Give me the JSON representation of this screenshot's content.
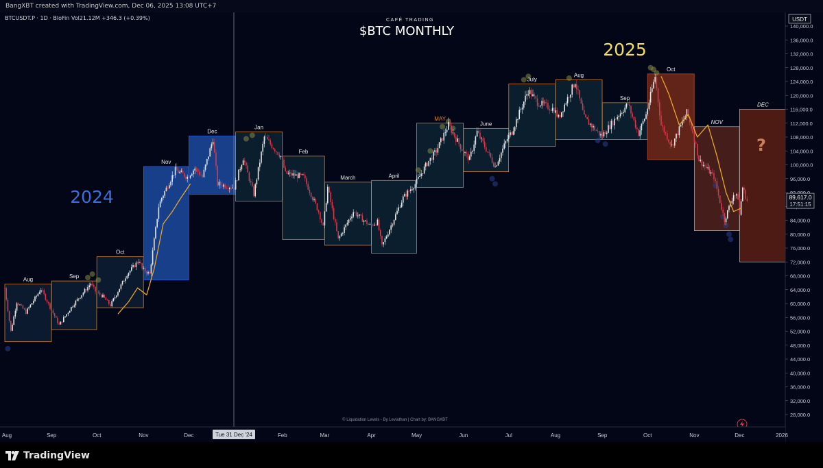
{
  "header": {
    "credit": "BangXBT created with TradingView.com, Dec 06, 2025 13:08 UTC+7",
    "symbol_info": "BTCUSDT.P · 1D · BloFin  Vol21.12M  +346.3 (+0.39%)"
  },
  "titles": {
    "brand": "CAFÉ TRADING",
    "main": "$BTC MONTHLY",
    "year_2024": "2024",
    "year_2025": "2025",
    "question": "?",
    "footer_credit": "© Liquidation Levels - By Leviathan | Chart by: BANGXBT"
  },
  "price_axis": {
    "currency_label": "USDT",
    "ticks": [
      "140,000.0",
      "136,000.0",
      "132,000.0",
      "128,000.0",
      "124,000.0",
      "120,000.0",
      "116,000.0",
      "112,000.0",
      "108,000.0",
      "104,000.0",
      "100,000.0",
      "96,000.0",
      "92,000.0",
      "88,000.0",
      "84,000.0",
      "80,000.0",
      "76,000.0",
      "72,000.0",
      "68,000.0",
      "64,000.0",
      "60,000.0",
      "56,000.0",
      "52,000.0",
      "48,000.0",
      "44,000.0",
      "40,000.0",
      "36,000.0",
      "32,000.0",
      "28,000.0"
    ],
    "current_price": "89,617.0",
    "countdown": "17:51:15"
  },
  "time_axis": {
    "labels": [
      "Aug",
      "Sep",
      "Oct",
      "Nov",
      "Dec",
      "Feb",
      "Mar",
      "Apr",
      "May",
      "Jun",
      "Jul",
      "Aug",
      "Sep",
      "Oct",
      "Nov",
      "Dec",
      "2026"
    ],
    "crosshair_label": "Tue 31 Dec '24"
  },
  "colors": {
    "background": "#020617",
    "bull_candle": "#e8e8e8",
    "bear_candle": "#d23a4e",
    "box_2024": "#1e4ea6",
    "box_2025_dark": "#0d2333",
    "box_orange_border": "#d4812a",
    "box_red_fill": "#7a2a1a",
    "year_2024_text": "#3d6fd8",
    "year_2025_text": "#f3e05a",
    "projection_line": "#e8a72a",
    "bubbles_green": "#8a8a46",
    "bubbles_blue": "#2a3f8c"
  },
  "chart_data": {
    "type": "candlestick",
    "title": "$BTC MONTHLY",
    "subtitle": "CAFÉ TRADING",
    "timeframe": "1D",
    "ylim": [
      26000,
      142000
    ],
    "xlabel": "",
    "ylabel": "",
    "current_price": 89617.0,
    "monthly_ranges": [
      {
        "month": "Aug",
        "label": "Aug",
        "start": "2024-08-01",
        "end": "2024-08-31",
        "high": 65600,
        "low": 49000,
        "style": "blue"
      },
      {
        "month": "Sep",
        "label": "Sep",
        "start": "2024-09-01",
        "end": "2024-09-30",
        "high": 66500,
        "low": 52500,
        "style": "blue"
      },
      {
        "month": "Oct",
        "label": "Oct",
        "start": "2024-10-01",
        "end": "2024-10-31",
        "high": 73500,
        "low": 58800,
        "style": "blue"
      },
      {
        "month": "Nov",
        "label": "Nov",
        "start": "2024-11-01",
        "end": "2024-11-30",
        "high": 99500,
        "low": 66800,
        "style": "blue_fill"
      },
      {
        "month": "Dec",
        "label": "Dec",
        "start": "2024-12-01",
        "end": "2024-12-31",
        "high": 108300,
        "low": 91500,
        "style": "blue_fill"
      },
      {
        "month": "Jan",
        "label": "Jan",
        "start": "2025-01-01",
        "end": "2025-01-31",
        "high": 109500,
        "low": 89500,
        "style": "orange"
      },
      {
        "month": "Feb",
        "label": "Feb",
        "start": "2025-02-01",
        "end": "2025-02-28",
        "high": 102500,
        "low": 78500,
        "style": "orange"
      },
      {
        "month": "Mar",
        "label": "March",
        "start": "2025-03-01",
        "end": "2025-03-31",
        "high": 95000,
        "low": 76800,
        "style": "orange"
      },
      {
        "month": "Apr",
        "label": "April",
        "start": "2025-04-01",
        "end": "2025-04-30",
        "high": 95500,
        "low": 74500,
        "style": "orange"
      },
      {
        "month": "May",
        "label": "MAY",
        "start": "2025-05-01",
        "end": "2025-05-31",
        "high": 112000,
        "low": 93500,
        "style": "orange"
      },
      {
        "month": "Jun",
        "label": "June",
        "start": "2025-06-01",
        "end": "2025-06-30",
        "high": 110500,
        "low": 98000,
        "style": "orange"
      },
      {
        "month": "Jul",
        "label": "July",
        "start": "2025-07-01",
        "end": "2025-07-31",
        "high": 123300,
        "low": 105300,
        "style": "orange"
      },
      {
        "month": "Aug",
        "label": "Aug",
        "start": "2025-08-01",
        "end": "2025-08-31",
        "high": 124500,
        "low": 107300,
        "style": "orange"
      },
      {
        "month": "Sep",
        "label": "Sep",
        "start": "2025-09-01",
        "end": "2025-09-30",
        "high": 117900,
        "low": 107300,
        "style": "orange"
      },
      {
        "month": "Oct",
        "label": "Oct",
        "start": "2025-10-01",
        "end": "2025-10-31",
        "high": 126200,
        "low": 101500,
        "style": "red"
      },
      {
        "month": "Nov",
        "label": "NOV",
        "start": "2025-11-01",
        "end": "2025-11-30",
        "high": 111000,
        "low": 81000,
        "style": "red_light"
      },
      {
        "month": "Dec",
        "label": "DEC",
        "start": "2025-12-01",
        "end": "2025-12-31",
        "high": 116000,
        "low": 72000,
        "style": "red_projection"
      }
    ],
    "price_path": [
      [
        "2024-08-01",
        64500
      ],
      [
        "2024-08-05",
        52000
      ],
      [
        "2024-08-09",
        60500
      ],
      [
        "2024-08-15",
        57500
      ],
      [
        "2024-08-25",
        64200
      ],
      [
        "2024-08-31",
        59000
      ],
      [
        "2024-09-06",
        53800
      ],
      [
        "2024-09-15",
        59500
      ],
      [
        "2024-09-27",
        65800
      ],
      [
        "2024-09-30",
        63500
      ],
      [
        "2024-10-05",
        62000
      ],
      [
        "2024-10-10",
        59500
      ],
      [
        "2024-10-21",
        68500
      ],
      [
        "2024-10-29",
        72500
      ],
      [
        "2024-10-31",
        70000
      ],
      [
        "2024-11-05",
        68500
      ],
      [
        "2024-11-11",
        88000
      ],
      [
        "2024-11-13",
        90500
      ],
      [
        "2024-11-22",
        98500
      ],
      [
        "2024-11-30",
        96500
      ],
      [
        "2024-12-05",
        99000
      ],
      [
        "2024-12-10",
        96500
      ],
      [
        "2024-12-17",
        107500
      ],
      [
        "2024-12-20",
        94500
      ],
      [
        "2024-12-31",
        93500
      ],
      [
        "2025-01-06",
        102000
      ],
      [
        "2025-01-13",
        91500
      ],
      [
        "2025-01-20",
        108000
      ],
      [
        "2025-01-31",
        102500
      ],
      [
        "2025-02-03",
        97500
      ],
      [
        "2025-02-15",
        96500
      ],
      [
        "2025-02-25",
        86500
      ],
      [
        "2025-02-28",
        82000
      ],
      [
        "2025-03-03",
        93500
      ],
      [
        "2025-03-10",
        78500
      ],
      [
        "2025-03-20",
        86500
      ],
      [
        "2025-03-31",
        82500
      ],
      [
        "2025-04-05",
        83500
      ],
      [
        "2025-04-08",
        76500
      ],
      [
        "2025-04-22",
        90500
      ],
      [
        "2025-04-30",
        94500
      ],
      [
        "2025-05-08",
        100500
      ],
      [
        "2025-05-14",
        104000
      ],
      [
        "2025-05-22",
        111500
      ],
      [
        "2025-05-31",
        104500
      ],
      [
        "2025-06-05",
        101500
      ],
      [
        "2025-06-10",
        109500
      ],
      [
        "2025-06-22",
        99500
      ],
      [
        "2025-06-30",
        107500
      ],
      [
        "2025-07-03",
        109500
      ],
      [
        "2025-07-14",
        121500
      ],
      [
        "2025-07-20",
        118000
      ],
      [
        "2025-07-31",
        116000
      ],
      [
        "2025-08-03",
        113500
      ],
      [
        "2025-08-14",
        124000
      ],
      [
        "2025-08-20",
        113500
      ],
      [
        "2025-08-31",
        108500
      ],
      [
        "2025-09-01",
        108500
      ],
      [
        "2025-09-10",
        113500
      ],
      [
        "2025-09-18",
        117500
      ],
      [
        "2025-09-25",
        109000
      ],
      [
        "2025-09-30",
        114500
      ],
      [
        "2025-10-06",
        125500
      ],
      [
        "2025-10-10",
        111500
      ],
      [
        "2025-10-17",
        105500
      ],
      [
        "2025-10-27",
        115000
      ],
      [
        "2025-10-31",
        109500
      ],
      [
        "2025-11-04",
        101500
      ],
      [
        "2025-11-14",
        96500
      ],
      [
        "2025-11-21",
        84000
      ],
      [
        "2025-11-27",
        91500
      ],
      [
        "2025-11-30",
        90500
      ],
      [
        "2025-12-01",
        85500
      ],
      [
        "2025-12-03",
        93500
      ],
      [
        "2025-12-06",
        89617
      ]
    ],
    "annotations": [
      "2024",
      "2025",
      "?"
    ]
  }
}
